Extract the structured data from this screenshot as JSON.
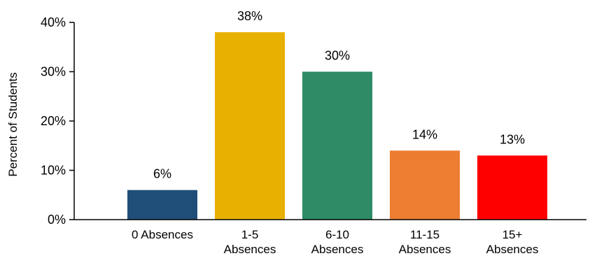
{
  "chart_data": {
    "type": "bar",
    "title": "",
    "xlabel": "",
    "ylabel": "Percent of Students",
    "categories": [
      [
        "0 Absences"
      ],
      [
        "1-5",
        "Absences"
      ],
      [
        "6-10",
        "Absences"
      ],
      [
        "11-15",
        "Absences"
      ],
      [
        "15+",
        "Absences"
      ]
    ],
    "values": [
      6,
      38,
      30,
      14,
      13
    ],
    "value_labels": [
      "6%",
      "38%",
      "30%",
      "14%",
      "13%"
    ],
    "colors": [
      "#1f4e79",
      "#e8b000",
      "#2e8b65",
      "#ed7d31",
      "#ff0000"
    ],
    "ylim": [
      0,
      40
    ],
    "yticks": [
      0,
      10,
      20,
      30,
      40
    ],
    "ytick_labels": [
      "0%",
      "10%",
      "20%",
      "30%",
      "40%"
    ],
    "grid": false,
    "legend": "none"
  }
}
